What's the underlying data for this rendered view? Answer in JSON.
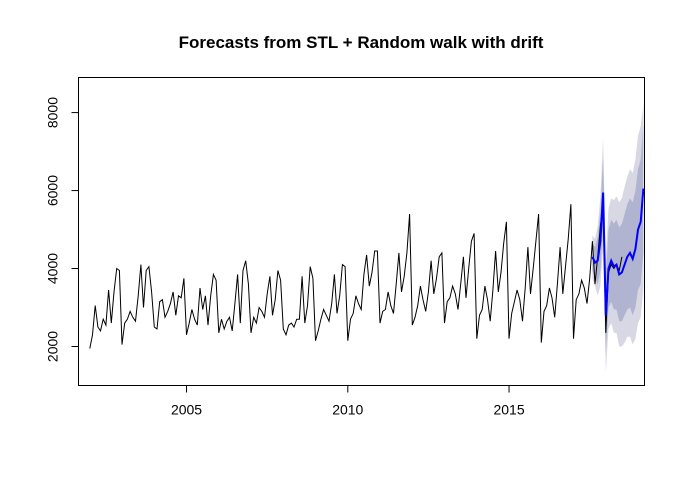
{
  "chart_data": {
    "type": "line",
    "title": "Forecasts from STL +  Random walk with drift",
    "xlabel": "",
    "ylabel": "",
    "xlim": [
      2001.65,
      2019.2
    ],
    "ylim": [
      1000,
      8900
    ],
    "x_ticks": [
      2005,
      2010,
      2015
    ],
    "y_ticks": [
      2000,
      4000,
      6000,
      8000
    ],
    "grid": false,
    "legend": "none",
    "colors": {
      "history": "#000000",
      "forecast": "#0000ff",
      "band95": "#d8d8e4",
      "band80": "#b0b4d0"
    },
    "history": {
      "start": 2002.0,
      "frequency": 12,
      "values": [
        1950,
        2300,
        3050,
        2500,
        2400,
        2700,
        2550,
        3450,
        2600,
        3400,
        4000,
        3950,
        2050,
        2600,
        2700,
        2900,
        2750,
        2650,
        3300,
        4100,
        3000,
        3950,
        4050,
        3400,
        2500,
        2450,
        3150,
        3200,
        2750,
        2900,
        3100,
        3400,
        2800,
        3300,
        3250,
        3750,
        2300,
        2600,
        2950,
        2700,
        2550,
        3500,
        2950,
        3300,
        2550,
        3300,
        3850,
        3700,
        2350,
        2700,
        2450,
        2650,
        2750,
        2400,
        3100,
        3850,
        2600,
        3950,
        4200,
        3600,
        2350,
        2750,
        2600,
        3000,
        2900,
        2750,
        3350,
        3800,
        2800,
        3200,
        3950,
        3700,
        2450,
        2300,
        2550,
        2600,
        2500,
        2700,
        2700,
        3800,
        2600,
        3050,
        4050,
        3750,
        2150,
        2400,
        2700,
        2950,
        2800,
        2650,
        3100,
        3850,
        2850,
        3300,
        4100,
        4050,
        2150,
        2700,
        2850,
        3300,
        3100,
        2950,
        3850,
        4350,
        3550,
        3900,
        4450,
        4450,
        2600,
        2900,
        2950,
        3400,
        3050,
        2850,
        3600,
        4400,
        3400,
        3800,
        4400,
        5400,
        2550,
        2750,
        3050,
        3550,
        3200,
        2900,
        3400,
        4200,
        3350,
        3750,
        4300,
        4400,
        2600,
        3150,
        3250,
        3550,
        3350,
        2950,
        3600,
        4300,
        3250,
        4000,
        4700,
        4900,
        2200,
        2800,
        2950,
        3550,
        3200,
        2650,
        3450,
        4450,
        3400,
        3900,
        4650,
        5200,
        2200,
        2850,
        3150,
        3450,
        3200,
        2650,
        3500,
        4550,
        3350,
        4000,
        4700,
        5400,
        2100,
        2900,
        3050,
        3500,
        3250,
        2750,
        3600,
        4550,
        3350,
        4050,
        4750,
        5650,
        2200,
        3200,
        3350,
        3700,
        3500,
        3100,
        3750,
        4700,
        3600,
        4300,
        5100,
        5700,
        2350,
        3900,
        4100,
        4000,
        4100,
        3950,
        4300
      ]
    },
    "forecast": {
      "start": 2017.5833,
      "frequency": 12,
      "mean": [
        4300,
        4150,
        4200,
        4700,
        5950,
        2800,
        4000,
        4200,
        4050,
        4100,
        3850,
        3900,
        4100,
        4300,
        4400,
        4250,
        4500,
        5000,
        5200,
        6050
      ],
      "lo80": [
        3950,
        3750,
        3600,
        3950,
        5050,
        1850,
        3000,
        3150,
        2950,
        2950,
        2650,
        2650,
        2800,
        2950,
        3000,
        2800,
        3000,
        3450,
        3600,
        4400
      ],
      "hi80": [
        4650,
        4550,
        4800,
        5450,
        6850,
        3750,
        5000,
        5250,
        5150,
        5250,
        5050,
        5150,
        5400,
        5650,
        5800,
        5700,
        6000,
        6550,
        6800,
        7700
      ],
      "lo95": [
        3750,
        3550,
        3300,
        3550,
        4550,
        1350,
        2450,
        2600,
        2350,
        2350,
        2000,
        2000,
        2100,
        2250,
        2250,
        2050,
        2200,
        2600,
        2750,
        3500
      ],
      "hi95": [
        4850,
        4750,
        5100,
        5850,
        7350,
        4250,
        5550,
        5800,
        5750,
        5850,
        5700,
        5800,
        6100,
        6350,
        6550,
        6450,
        6800,
        7400,
        7650,
        8200
      ]
    }
  }
}
